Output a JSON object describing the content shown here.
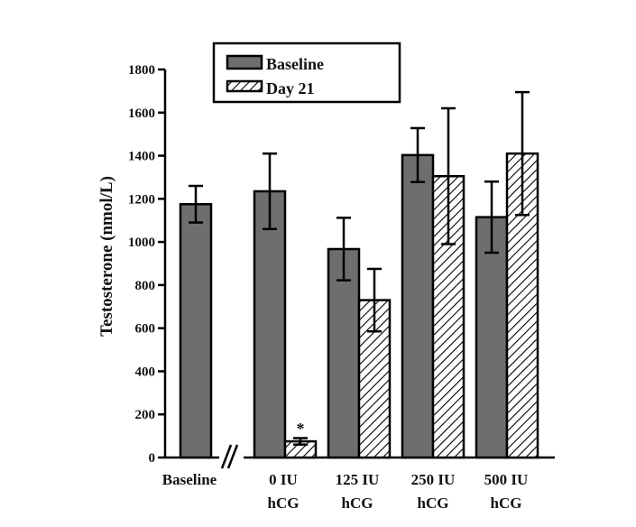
{
  "chart_data": {
    "type": "bar",
    "title": "",
    "xlabel": "",
    "ylabel": "Testosterone (nmol/L)",
    "ylim": [
      0,
      1800
    ],
    "yticks": [
      0,
      200,
      400,
      600,
      800,
      1000,
      1200,
      1400,
      1600,
      1800
    ],
    "grid": false,
    "legend_position": "top-center",
    "axis_break": "between Baseline and 0 IU hCG",
    "categories": [
      {
        "line1": "Baseline",
        "line2": ""
      },
      {
        "line1": "0 IU",
        "line2": "hCG"
      },
      {
        "line1": "125 IU",
        "line2": "hCG"
      },
      {
        "line1": "250 IU",
        "line2": "hCG"
      },
      {
        "line1": "500 IU",
        "line2": "hCG"
      }
    ],
    "series": [
      {
        "name": "Baseline",
        "style": "solid-gray",
        "color": "#6e6e6e",
        "values": [
          1175,
          1235,
          967,
          1403,
          1115
        ],
        "errors": [
          85,
          175,
          145,
          125,
          165
        ]
      },
      {
        "name": "Day 21",
        "style": "hatched",
        "color": "#ffffff",
        "values": [
          null,
          75,
          730,
          1305,
          1410
        ],
        "errors": [
          null,
          15,
          145,
          315,
          285
        ]
      }
    ],
    "annotations": [
      {
        "text": "*",
        "category": "0 IU hCG",
        "series": "Day 21"
      }
    ]
  },
  "legend": {
    "items": [
      {
        "label": "Baseline"
      },
      {
        "label": "Day 21"
      }
    ]
  },
  "colors": {
    "bar_fill": "#6e6e6e",
    "outline": "#000000",
    "background": "#ffffff"
  }
}
